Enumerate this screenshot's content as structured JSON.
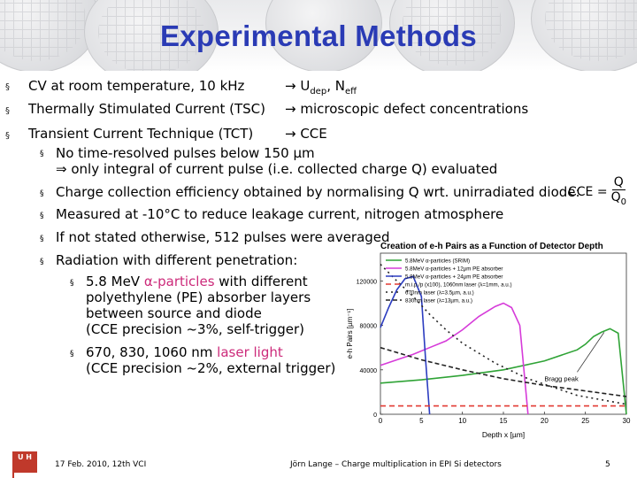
{
  "title": "Experimental Methods",
  "bullet_char": "§",
  "sub_bullet_char": "§",
  "main_bullets": [
    {
      "text": "CV at room temperature, 10 kHz",
      "result_pre": "→ U",
      "sub_dep": "dep",
      "mid": ", N",
      "sub_eff": "eff"
    },
    {
      "text": "Thermally Stimulated Current (TSC)",
      "result": "→ microscopic defect concentrations"
    },
    {
      "text": "Transient Current Technique (TCT)",
      "result": "→ CCE"
    }
  ],
  "tct_bullets": [
    {
      "line1": "No time-resolved pulses below 150 µm",
      "line2": "⇒ only integral of current pulse (i.e. collected charge Q) evaluated"
    },
    {
      "line1": "Charge collection efficiency obtained by normalising Q wrt. unirradiated diode:"
    },
    {
      "line1": "Measured at -10°C to reduce leakage current, nitrogen atmosphere"
    },
    {
      "line1": "If not stated otherwise, 512 pulses were averaged"
    },
    {
      "line1": "Radiation with different penetration:"
    }
  ],
  "penetration": {
    "alpha_pre": "5.8 MeV ",
    "alpha_hl": "α-particles",
    "alpha_post": " with different",
    "alpha_l2": "polyethylene (PE) absorber layers",
    "alpha_l3": "between source and diode",
    "alpha_l4": "(CCE precision ~3%, self-trigger)",
    "laser_pre": "670, 830, 1060 nm ",
    "laser_hl": "laser light",
    "laser_l2": "(CCE precision ~2%, external trigger)"
  },
  "formula": {
    "lhs": "CCE =",
    "num": "Q",
    "den": "Q",
    "den_sub": "0"
  },
  "chart_data": {
    "type": "line",
    "title": "Creation of e-h Pairs as a Function of Detector Depth",
    "xlabel": "Depth x [µm]",
    "ylabel": "e-h Pairs [µm⁻¹]",
    "xlim": [
      0,
      30
    ],
    "ylim": [
      0,
      145000
    ],
    "xticks": [
      "0",
      "5",
      "10",
      "15",
      "20",
      "25",
      "30"
    ],
    "yticks": [
      "0",
      "40000",
      "80000",
      "120000"
    ],
    "annotation": "Bragg peak",
    "series": [
      {
        "name": "5.8MeV α-particles (SRIM)",
        "color": "#2fa336",
        "dash": "",
        "x": [
          0,
          5,
          10,
          15,
          20,
          24,
          25,
          26,
          27,
          28,
          29,
          30
        ],
        "y": [
          28000,
          31000,
          35000,
          40000,
          48000,
          58000,
          63000,
          70000,
          74000,
          77000,
          73000,
          0
        ]
      },
      {
        "name": "5.8MeV α-particles + 12µm PE absorber",
        "color": "#d63bd9",
        "dash": "",
        "x": [
          0,
          2,
          4,
          6,
          8,
          10,
          12,
          14,
          15,
          16,
          17,
          17.5,
          18
        ],
        "y": [
          44000,
          49000,
          54000,
          60000,
          66000,
          76000,
          88000,
          97000,
          100000,
          96000,
          80000,
          40000,
          0
        ]
      },
      {
        "name": "5.8MeV α-particles + 24µm PE absorber",
        "color": "#2b3cc0",
        "dash": "",
        "x": [
          0,
          1,
          2,
          3,
          4,
          5,
          5.5,
          6
        ],
        "y": [
          78000,
          96000,
          112000,
          122000,
          124000,
          106000,
          50000,
          0
        ]
      },
      {
        "name": "m.i.p./p (x100), 1060nm laser (λ=1mm, a.u.)",
        "color": "#e23a33",
        "dash": "6,4",
        "x": [
          0,
          30
        ],
        "y": [
          7500,
          7500
        ]
      },
      {
        "name": "670nm laser (λ=3.5µm, a.u.)",
        "color": "#222222",
        "dash": "2,4",
        "x": [
          0,
          2,
          4,
          6,
          8,
          10,
          14,
          18,
          24,
          30
        ],
        "y": [
          135000,
          120000,
          106000,
          90000,
          76000,
          64000,
          46000,
          32000,
          17000,
          9000
        ]
      },
      {
        "name": "830nm laser (λ=13µm, a.u.)",
        "color": "#222222",
        "dash": "5,3",
        "x": [
          0,
          5,
          10,
          15,
          20,
          25,
          30
        ],
        "y": [
          60000,
          49000,
          40000,
          32000,
          26000,
          21000,
          16000
        ]
      }
    ]
  },
  "footer": {
    "logo": "U H",
    "left": "17 Feb. 2010,  12th VCI",
    "center": "Jörn Lange – Charge multiplication in EPI Si detectors",
    "page": "5"
  }
}
